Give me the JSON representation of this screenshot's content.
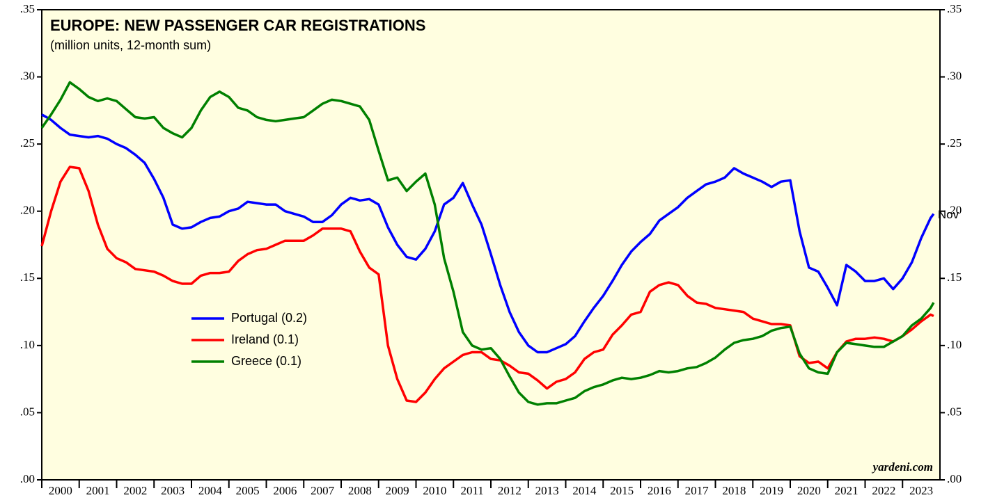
{
  "chart_data": {
    "type": "line",
    "title": "EUROPE: NEW PASSENGER CAR REGISTRATIONS",
    "subtitle": "(million units, 12-month sum)",
    "source": "yardeni.com",
    "end_label": "Nov",
    "background": "#fffee0",
    "xlim": [
      2000,
      2024
    ],
    "xticks": [
      2000,
      2001,
      2002,
      2003,
      2004,
      2005,
      2006,
      2007,
      2008,
      2009,
      2010,
      2011,
      2012,
      2013,
      2014,
      2015,
      2016,
      2017,
      2018,
      2019,
      2020,
      2021,
      2022,
      2023
    ],
    "ylim": [
      0,
      0.35
    ],
    "yticks": [
      {
        "value": 0,
        "label": ".00"
      },
      {
        "value": 0.05,
        "label": ".05"
      },
      {
        "value": 0.1,
        "label": ".10"
      },
      {
        "value": 0.15,
        "label": ".15"
      },
      {
        "value": 0.2,
        "label": ".20"
      },
      {
        "value": 0.25,
        "label": ".25"
      },
      {
        "value": 0.3,
        "label": ".30"
      },
      {
        "value": 0.35,
        "label": ".35"
      }
    ],
    "x": [
      2000,
      2000.25,
      2000.5,
      2000.75,
      2001,
      2001.25,
      2001.5,
      2001.75,
      2002,
      2002.25,
      2002.5,
      2002.75,
      2003,
      2003.25,
      2003.5,
      2003.75,
      2004,
      2004.25,
      2004.5,
      2004.75,
      2005,
      2005.25,
      2005.5,
      2005.75,
      2006,
      2006.25,
      2006.5,
      2006.75,
      2007,
      2007.25,
      2007.5,
      2007.75,
      2008,
      2008.25,
      2008.5,
      2008.75,
      2009,
      2009.25,
      2009.5,
      2009.75,
      2010,
      2010.25,
      2010.5,
      2010.75,
      2011,
      2011.25,
      2011.5,
      2011.75,
      2012,
      2012.25,
      2012.5,
      2012.75,
      2013,
      2013.25,
      2013.5,
      2013.75,
      2014,
      2014.25,
      2014.5,
      2014.75,
      2015,
      2015.25,
      2015.5,
      2015.75,
      2016,
      2016.25,
      2016.5,
      2016.75,
      2017,
      2017.25,
      2017.5,
      2017.75,
      2018,
      2018.25,
      2018.5,
      2018.75,
      2019,
      2019.25,
      2019.5,
      2019.75,
      2020,
      2020.25,
      2020.5,
      2020.75,
      2021,
      2021.25,
      2021.5,
      2021.75,
      2022,
      2022.25,
      2022.5,
      2022.75,
      2023,
      2023.25,
      2023.5,
      2023.75,
      2023.83
    ],
    "series": [
      {
        "name": "Portugal (0.2)",
        "color": "#0000ff",
        "values": [
          0.272,
          0.268,
          0.262,
          0.257,
          0.256,
          0.255,
          0.256,
          0.254,
          0.25,
          0.247,
          0.242,
          0.236,
          0.224,
          0.21,
          0.19,
          0.187,
          0.188,
          0.192,
          0.195,
          0.196,
          0.2,
          0.202,
          0.207,
          0.206,
          0.205,
          0.205,
          0.2,
          0.198,
          0.196,
          0.192,
          0.192,
          0.197,
          0.205,
          0.21,
          0.208,
          0.209,
          0.205,
          0.188,
          0.175,
          0.166,
          0.164,
          0.172,
          0.185,
          0.205,
          0.21,
          0.221,
          0.205,
          0.19,
          0.168,
          0.145,
          0.125,
          0.11,
          0.1,
          0.095,
          0.095,
          0.098,
          0.101,
          0.107,
          0.118,
          0.128,
          0.137,
          0.148,
          0.16,
          0.17,
          0.177,
          0.183,
          0.193,
          0.198,
          0.203,
          0.21,
          0.215,
          0.22,
          0.222,
          0.225,
          0.232,
          0.228,
          0.225,
          0.222,
          0.218,
          0.222,
          0.223,
          0.185,
          0.158,
          0.155,
          0.143,
          0.13,
          0.16,
          0.155,
          0.148,
          0.148,
          0.15,
          0.142,
          0.15,
          0.162,
          0.18,
          0.195,
          0.198
        ]
      },
      {
        "name": "Ireland (0.1)",
        "color": "#ff0000",
        "values": [
          0.174,
          0.2,
          0.222,
          0.233,
          0.232,
          0.215,
          0.19,
          0.172,
          0.165,
          0.162,
          0.157,
          0.156,
          0.155,
          0.152,
          0.148,
          0.146,
          0.146,
          0.152,
          0.154,
          0.154,
          0.155,
          0.163,
          0.168,
          0.171,
          0.172,
          0.175,
          0.178,
          0.178,
          0.178,
          0.182,
          0.187,
          0.187,
          0.187,
          0.185,
          0.17,
          0.158,
          0.153,
          0.1,
          0.075,
          0.059,
          0.058,
          0.065,
          0.075,
          0.083,
          0.088,
          0.093,
          0.095,
          0.095,
          0.09,
          0.089,
          0.085,
          0.08,
          0.079,
          0.074,
          0.068,
          0.073,
          0.075,
          0.08,
          0.09,
          0.095,
          0.097,
          0.108,
          0.115,
          0.123,
          0.125,
          0.14,
          0.145,
          0.147,
          0.145,
          0.137,
          0.132,
          0.131,
          0.128,
          0.127,
          0.126,
          0.125,
          0.12,
          0.118,
          0.116,
          0.116,
          0.115,
          0.092,
          0.087,
          0.088,
          0.083,
          0.095,
          0.103,
          0.105,
          0.105,
          0.106,
          0.105,
          0.103,
          0.107,
          0.112,
          0.118,
          0.123,
          0.122
        ]
      },
      {
        "name": "Greece (0.1)",
        "color": "#008000",
        "values": [
          0.262,
          0.272,
          0.283,
          0.296,
          0.291,
          0.285,
          0.282,
          0.284,
          0.282,
          0.276,
          0.27,
          0.269,
          0.27,
          0.262,
          0.258,
          0.255,
          0.262,
          0.275,
          0.285,
          0.289,
          0.285,
          0.277,
          0.275,
          0.27,
          0.268,
          0.267,
          0.268,
          0.269,
          0.27,
          0.275,
          0.28,
          0.283,
          0.282,
          0.28,
          0.278,
          0.268,
          0.245,
          0.223,
          0.225,
          0.215,
          0.222,
          0.228,
          0.205,
          0.165,
          0.14,
          0.11,
          0.1,
          0.097,
          0.098,
          0.09,
          0.077,
          0.065,
          0.058,
          0.056,
          0.057,
          0.057,
          0.059,
          0.061,
          0.066,
          0.069,
          0.071,
          0.074,
          0.076,
          0.075,
          0.076,
          0.078,
          0.081,
          0.08,
          0.081,
          0.083,
          0.084,
          0.087,
          0.091,
          0.097,
          0.102,
          0.104,
          0.105,
          0.107,
          0.111,
          0.113,
          0.114,
          0.094,
          0.083,
          0.08,
          0.079,
          0.095,
          0.102,
          0.101,
          0.1,
          0.099,
          0.099,
          0.103,
          0.107,
          0.115,
          0.12,
          0.128,
          0.132
        ]
      }
    ]
  }
}
